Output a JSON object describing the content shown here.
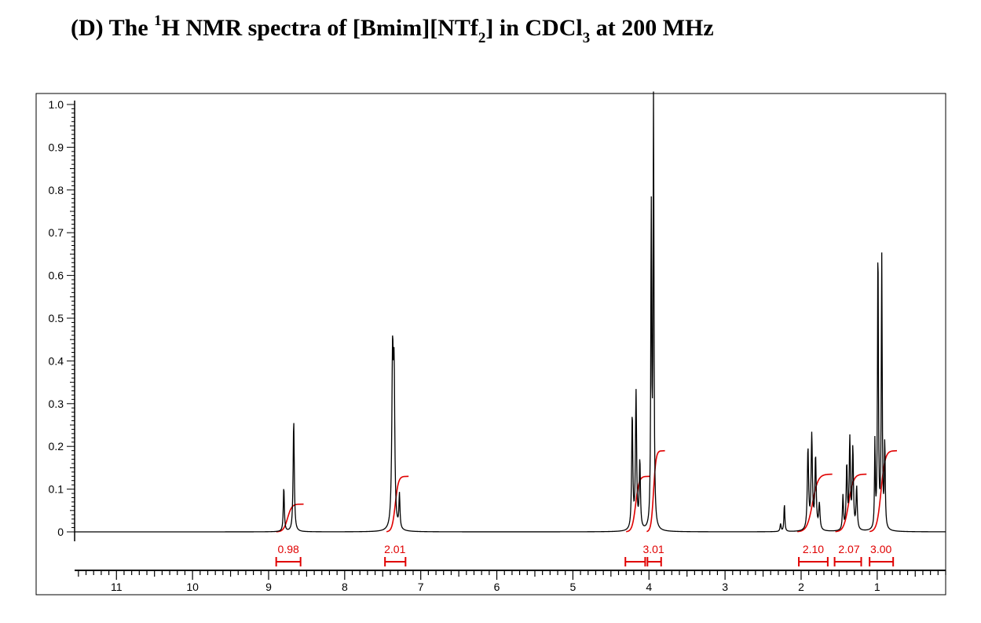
{
  "title": {
    "label": "(D)",
    "prefix": "The ",
    "isotope": "1",
    "nucleus": "H NMR spectra of [Bmim][NTf",
    "sub1": "2",
    "mid": "] in CDCl",
    "sub2": "3",
    "suffix": " at 200 MHz"
  },
  "colors": {
    "spectrum": "#000000",
    "integral": "#e00000",
    "axis": "#000000"
  },
  "chart_data": {
    "type": "line",
    "title": "(D) The 1H NMR spectra of [Bmim][NTf2] in CDCl3 at 200 MHz",
    "xlabel": "",
    "ylabel": "",
    "xlim": [
      11.55,
      0.1
    ],
    "ylim": [
      -0.08,
      1.03
    ],
    "x_reversed": true,
    "x_ticks": [
      11,
      10,
      9,
      8,
      7,
      6,
      5,
      4,
      3,
      2,
      1
    ],
    "y_ticks": [
      {
        "v": 0,
        "label": "0"
      },
      {
        "v": 0.1,
        "label": "0.1"
      },
      {
        "v": 0.2,
        "label": "0.2"
      },
      {
        "v": 0.3,
        "label": "0.3"
      },
      {
        "v": 0.4,
        "label": "0.4"
      },
      {
        "v": 0.5,
        "label": "0.5"
      },
      {
        "v": 0.6,
        "label": "0.6"
      },
      {
        "v": 0.7,
        "label": "0.7"
      },
      {
        "v": 0.8,
        "label": "0.8"
      },
      {
        "v": 0.9,
        "label": "0.9"
      },
      {
        "v": 1.0,
        "label": "1.0"
      }
    ],
    "peaks": [
      {
        "ppm": 8.8,
        "h": 0.105,
        "w": 0.008
      },
      {
        "ppm": 8.67,
        "h": 0.262,
        "w": 0.009
      },
      {
        "ppm": 7.37,
        "h": 0.4,
        "w": 0.012
      },
      {
        "ppm": 7.35,
        "h": 0.32,
        "w": 0.01
      },
      {
        "ppm": 7.28,
        "h": 0.08,
        "w": 0.008
      },
      {
        "ppm": 4.22,
        "h": 0.27,
        "w": 0.009
      },
      {
        "ppm": 4.17,
        "h": 0.32,
        "w": 0.009
      },
      {
        "ppm": 4.12,
        "h": 0.16,
        "w": 0.009
      },
      {
        "ppm": 3.97,
        "h": 0.74,
        "w": 0.007
      },
      {
        "ppm": 3.94,
        "h": 0.995,
        "w": 0.007
      },
      {
        "ppm": 2.22,
        "h": 0.065,
        "w": 0.007
      },
      {
        "ppm": 2.27,
        "h": 0.018,
        "w": 0.008
      },
      {
        "ppm": 1.91,
        "h": 0.19,
        "w": 0.01
      },
      {
        "ppm": 1.86,
        "h": 0.22,
        "w": 0.01
      },
      {
        "ppm": 1.81,
        "h": 0.17,
        "w": 0.01
      },
      {
        "ppm": 1.76,
        "h": 0.06,
        "w": 0.01
      },
      {
        "ppm": 1.45,
        "h": 0.08,
        "w": 0.008
      },
      {
        "ppm": 1.4,
        "h": 0.15,
        "w": 0.009
      },
      {
        "ppm": 1.36,
        "h": 0.21,
        "w": 0.009
      },
      {
        "ppm": 1.32,
        "h": 0.19,
        "w": 0.009
      },
      {
        "ppm": 1.27,
        "h": 0.1,
        "w": 0.009
      },
      {
        "ppm": 1.03,
        "h": 0.2,
        "w": 0.006
      },
      {
        "ppm": 0.99,
        "h": 0.67,
        "w": 0.007
      },
      {
        "ppm": 0.94,
        "h": 0.635,
        "w": 0.007
      },
      {
        "ppm": 0.9,
        "h": 0.2,
        "w": 0.007
      }
    ],
    "integrals": [
      {
        "start": 8.9,
        "end": 8.6,
        "rise": 0.065
      },
      {
        "start": 7.45,
        "end": 7.22,
        "rise": 0.13
      },
      {
        "start": 4.3,
        "end": 4.05,
        "rise": 0.13
      },
      {
        "start": 4.03,
        "end": 3.85,
        "rise": 0.19
      },
      {
        "start": 2.05,
        "end": 1.65,
        "rise": 0.135
      },
      {
        "start": 1.55,
        "end": 1.2,
        "rise": 0.135
      },
      {
        "start": 1.1,
        "end": 0.8,
        "rise": 0.19
      }
    ],
    "integral_labels": [
      {
        "text": "0.98",
        "ppm": 8.74,
        "from": 8.9,
        "to": 8.58
      },
      {
        "text": "2.01",
        "ppm": 7.34,
        "from": 7.47,
        "to": 7.2
      },
      {
        "text": "",
        "ppm": 4.16,
        "from": 4.31,
        "to": 4.05
      },
      {
        "text": "3.01",
        "ppm": 3.94,
        "from": 4.02,
        "to": 3.84
      },
      {
        "text": "2.10",
        "ppm": 1.84,
        "from": 2.03,
        "to": 1.65
      },
      {
        "text": "2.07",
        "ppm": 1.37,
        "from": 1.56,
        "to": 1.21
      },
      {
        "text": "3.00",
        "ppm": 0.95,
        "from": 1.1,
        "to": 0.79
      }
    ]
  }
}
